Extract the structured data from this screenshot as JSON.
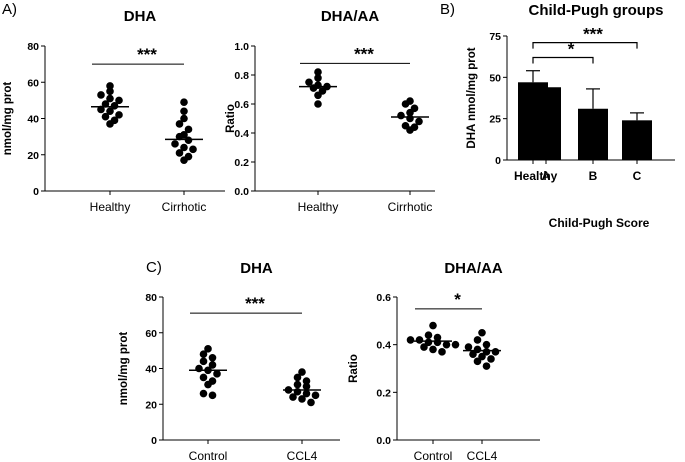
{
  "panel_labels": {
    "a": "A)",
    "b": "B)",
    "c": "C)"
  },
  "chart_data": [
    {
      "id": "A1",
      "type": "scatter",
      "title": "DHA",
      "xlabel": "",
      "ylabel": "nmol/mg prot",
      "ylim": [
        0,
        80
      ],
      "yticks": [
        "0",
        "20",
        "40",
        "60",
        "80"
      ],
      "categories": [
        "Healthy",
        "Cirrhotic"
      ],
      "series": [
        {
          "name": "Healthy",
          "values": [
            58,
            55,
            53,
            51,
            50,
            48,
            47,
            45,
            44,
            42,
            41,
            39,
            37
          ],
          "mean": 46.5
        },
        {
          "name": "Cirrhotic",
          "values": [
            49,
            44,
            40,
            37,
            34,
            31,
            30,
            28,
            26,
            24,
            23,
            21,
            19,
            17
          ],
          "mean": 28.5
        }
      ],
      "significance": [
        {
          "from": "Healthy",
          "to": "Cirrhotic",
          "label": "***",
          "y": 70
        }
      ]
    },
    {
      "id": "A2",
      "type": "scatter",
      "title": "DHA/AA",
      "xlabel": "",
      "ylabel": "Ratio",
      "ylim": [
        0,
        1.0
      ],
      "yticks": [
        "0.0",
        "0.2",
        "0.4",
        "0.6",
        "0.8",
        "1.0"
      ],
      "categories": [
        "Healthy",
        "Cirrhotic"
      ],
      "series": [
        {
          "name": "Healthy",
          "values": [
            0.82,
            0.78,
            0.75,
            0.73,
            0.72,
            0.71,
            0.69,
            0.66,
            0.6
          ],
          "mean": 0.72
        },
        {
          "name": "Cirrhotic",
          "values": [
            0.62,
            0.6,
            0.57,
            0.54,
            0.52,
            0.5,
            0.48,
            0.45,
            0.44,
            0.42
          ],
          "mean": 0.51
        }
      ],
      "significance": [
        {
          "from": "Healthy",
          "to": "Cirrhotic",
          "label": "***",
          "y": 0.88
        }
      ]
    },
    {
      "id": "B",
      "type": "bar",
      "title": "Child-Pugh groups",
      "xlabel": "Child-Pugh Score",
      "ylabel": "DHA nmol/mg prot",
      "ylim": [
        0,
        75
      ],
      "yticks": [
        "0",
        "25",
        "50",
        "75"
      ],
      "categories": [
        "Healthy",
        "A",
        "B",
        "C"
      ],
      "values": [
        47,
        44,
        31,
        24
      ],
      "errors": [
        7,
        0,
        12,
        4.5
      ],
      "significance": [
        {
          "from": "Healthy",
          "to": "B",
          "label": "*",
          "y": 62
        },
        {
          "from": "Healthy",
          "to": "C",
          "label": "***",
          "y": 71
        }
      ]
    },
    {
      "id": "C1",
      "type": "scatter",
      "title": "DHA",
      "xlabel": "",
      "ylabel": "nmol/mg prot",
      "ylim": [
        0,
        80
      ],
      "yticks": [
        "0",
        "20",
        "40",
        "60",
        "80"
      ],
      "categories": [
        "Control",
        "CCL4"
      ],
      "series": [
        {
          "name": "Control",
          "values": [
            51,
            48,
            46,
            44,
            42,
            40,
            39,
            37,
            35,
            33,
            31,
            26,
            25
          ],
          "mean": 39
        },
        {
          "name": "CCL4",
          "values": [
            38,
            35,
            33,
            31,
            30,
            28,
            27,
            26,
            25,
            24,
            23,
            21
          ],
          "mean": 28
        }
      ],
      "significance": [
        {
          "from": "Control",
          "to": "CCL4",
          "label": "***",
          "y": 71
        }
      ]
    },
    {
      "id": "C2",
      "type": "scatter",
      "title": "DHA/AA",
      "xlabel": "",
      "ylabel": "Ratio",
      "ylim": [
        0,
        0.6
      ],
      "yticks": [
        "0.0",
        "0.2",
        "0.4",
        "0.6"
      ],
      "categories": [
        "Control",
        "CCL4"
      ],
      "series": [
        {
          "name": "Control",
          "values": [
            0.48,
            0.44,
            0.43,
            0.42,
            0.42,
            0.41,
            0.41,
            0.4,
            0.4,
            0.39,
            0.38,
            0.37
          ],
          "mean": 0.415
        },
        {
          "name": "CCL4",
          "values": [
            0.45,
            0.42,
            0.4,
            0.39,
            0.38,
            0.37,
            0.37,
            0.36,
            0.35,
            0.34,
            0.33,
            0.31
          ],
          "mean": 0.375
        }
      ],
      "significance": [
        {
          "from": "Control",
          "to": "CCL4",
          "label": "*",
          "y": 0.55
        }
      ]
    }
  ]
}
